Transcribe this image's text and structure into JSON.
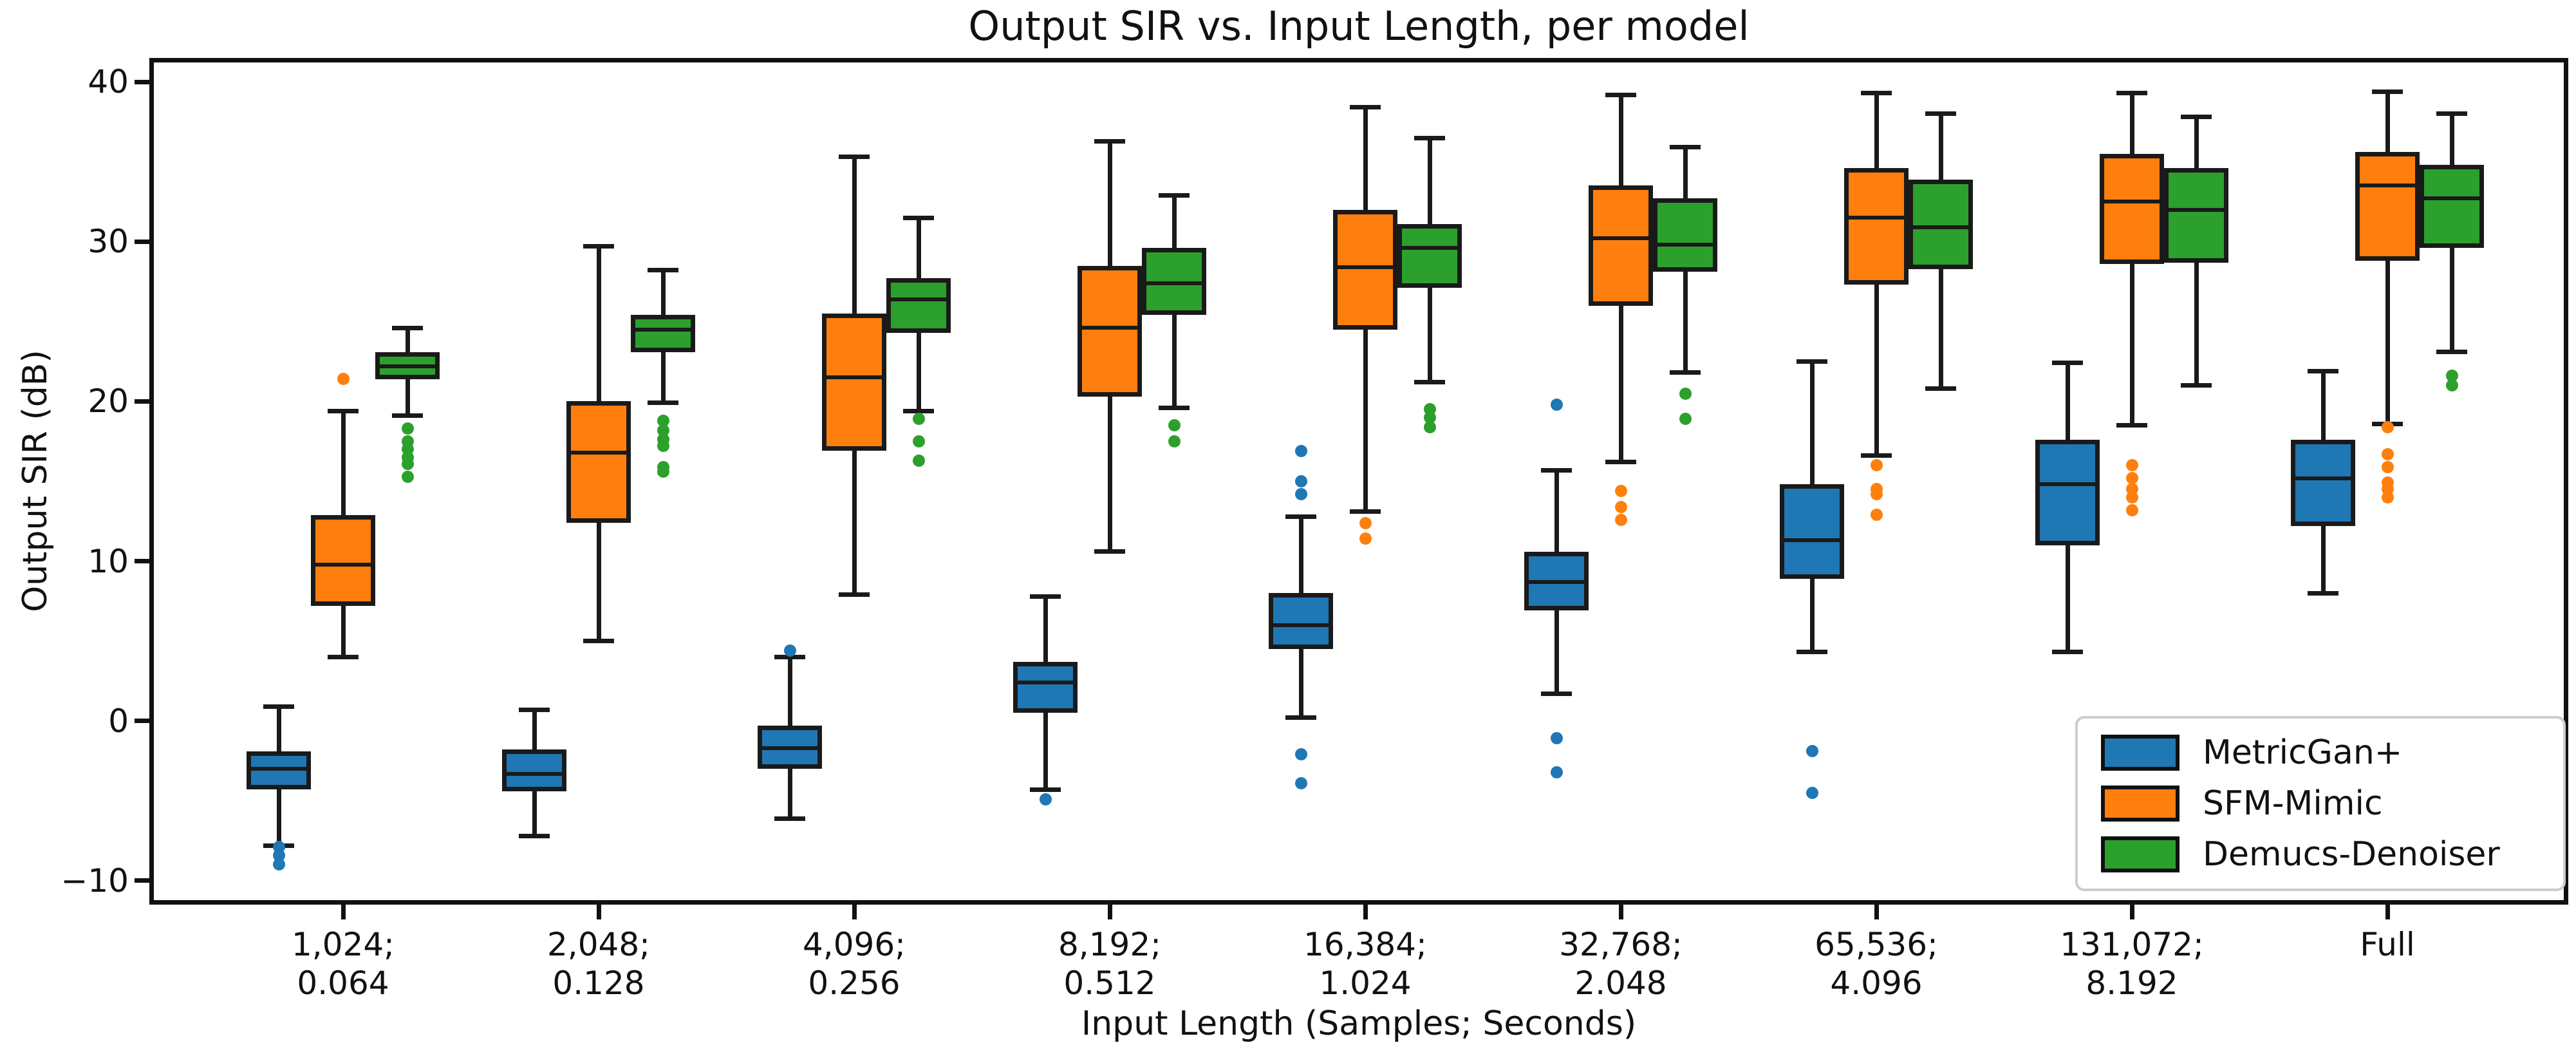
{
  "chart_data": {
    "type": "grouped_boxplot",
    "title": "Output SIR vs. Input Length, per model",
    "xlabel": "Input Length (Samples; Seconds)",
    "ylabel": "Output SIR (dB)",
    "ylim": [
      -11.5,
      41.5
    ],
    "yticks": [
      {
        "value": 40,
        "label": "40"
      },
      {
        "value": 30,
        "label": "30"
      },
      {
        "value": 20,
        "label": "20"
      },
      {
        "value": 10,
        "label": "10"
      },
      {
        "value": 0,
        "label": "0"
      },
      {
        "value": -10,
        "label": "−10"
      }
    ],
    "categories": [
      "1,024;\n0.064",
      "2,048;\n0.128",
      "4,096;\n0.256",
      "8,192;\n0.512",
      "16,384;\n1.024",
      "32,768;\n2.048",
      "65,536;\n4.096",
      "131,072;\n8.192",
      "Full"
    ],
    "grid": false,
    "legend_position": "lower right",
    "series": [
      {
        "name": "MetricGan+",
        "color": "#1f77b4",
        "boxes": [
          {
            "whislo": -7.8,
            "q1": -4.3,
            "med": -3.0,
            "q3": -1.9,
            "whishi": 0.9,
            "outliers": [
              -7.9,
              -8.4,
              -9.0
            ]
          },
          {
            "whislo": -7.2,
            "q1": -4.4,
            "med": -3.3,
            "q3": -1.8,
            "whishi": 0.7,
            "outliers": []
          },
          {
            "whislo": -6.1,
            "q1": -3.0,
            "med": -1.7,
            "q3": -0.3,
            "whishi": 4.0,
            "outliers": [
              4.4
            ]
          },
          {
            "whislo": -4.3,
            "q1": 0.5,
            "med": 2.4,
            "q3": 3.7,
            "whishi": 7.8,
            "outliers": [
              -4.9
            ]
          },
          {
            "whislo": 0.2,
            "q1": 4.5,
            "med": 6.0,
            "q3": 8.0,
            "whishi": 12.8,
            "outliers": [
              16.9,
              15.0,
              14.2,
              -2.1,
              -3.9
            ]
          },
          {
            "whislo": 1.7,
            "q1": 6.9,
            "med": 8.7,
            "q3": 10.6,
            "whishi": 15.7,
            "outliers": [
              19.8,
              -1.1,
              -3.2
            ]
          },
          {
            "whislo": 4.3,
            "q1": 8.9,
            "med": 11.3,
            "q3": 14.8,
            "whishi": 22.5,
            "outliers": [
              -1.9,
              -4.5
            ]
          },
          {
            "whislo": 4.3,
            "q1": 11.0,
            "med": 14.8,
            "q3": 17.6,
            "whishi": 22.4,
            "outliers": []
          },
          {
            "whislo": 8.0,
            "q1": 12.2,
            "med": 15.2,
            "q3": 17.6,
            "whishi": 21.9,
            "outliers": []
          }
        ]
      },
      {
        "name": "SFM-Mimic",
        "color": "#ff7f0e",
        "boxes": [
          {
            "whislo": 4.0,
            "q1": 7.2,
            "med": 9.8,
            "q3": 12.9,
            "whishi": 19.4,
            "outliers": [
              21.4
            ]
          },
          {
            "whislo": 5.0,
            "q1": 12.4,
            "med": 16.8,
            "q3": 20.0,
            "whishi": 29.7,
            "outliers": []
          },
          {
            "whislo": 7.9,
            "q1": 16.9,
            "med": 21.5,
            "q3": 25.5,
            "whishi": 35.3,
            "outliers": []
          },
          {
            "whislo": 10.6,
            "q1": 20.3,
            "med": 24.6,
            "q3": 28.5,
            "whishi": 36.3,
            "outliers": []
          },
          {
            "whislo": 13.1,
            "q1": 24.5,
            "med": 28.4,
            "q3": 32.0,
            "whishi": 38.4,
            "outliers": [
              12.4,
              11.4
            ]
          },
          {
            "whislo": 16.2,
            "q1": 26.0,
            "med": 30.2,
            "q3": 33.5,
            "whishi": 39.2,
            "outliers": [
              14.4,
              13.4,
              12.6
            ]
          },
          {
            "whislo": 16.6,
            "q1": 27.3,
            "med": 31.5,
            "q3": 34.6,
            "whishi": 39.3,
            "outliers": [
              16.0,
              14.5,
              14.2,
              12.9
            ]
          },
          {
            "whislo": 18.5,
            "q1": 28.6,
            "med": 32.5,
            "q3": 35.5,
            "whishi": 39.3,
            "outliers": [
              16.0,
              15.2,
              14.5,
              14.0,
              13.2
            ]
          },
          {
            "whislo": 18.6,
            "q1": 28.8,
            "med": 33.5,
            "q3": 35.6,
            "whishi": 39.4,
            "outliers": [
              18.4,
              16.7,
              15.9,
              14.9,
              14.5,
              14.0
            ]
          }
        ]
      },
      {
        "name": "Demucs-Denoiser",
        "color": "#2ca02c",
        "boxes": [
          {
            "whislo": 19.1,
            "q1": 21.4,
            "med": 22.2,
            "q3": 23.1,
            "whishi": 24.6,
            "outliers": [
              18.3,
              17.5,
              17.0,
              16.5,
              16.1,
              15.3
            ]
          },
          {
            "whislo": 19.9,
            "q1": 23.1,
            "med": 24.5,
            "q3": 25.4,
            "whishi": 28.2,
            "outliers": [
              18.8,
              18.2,
              17.6,
              17.2,
              15.9,
              15.6
            ]
          },
          {
            "whislo": 19.4,
            "q1": 24.3,
            "med": 26.4,
            "q3": 27.7,
            "whishi": 31.5,
            "outliers": [
              18.9,
              17.5,
              16.3
            ]
          },
          {
            "whislo": 19.6,
            "q1": 25.4,
            "med": 27.4,
            "q3": 29.6,
            "whishi": 32.9,
            "outliers": [
              18.5,
              17.5
            ]
          },
          {
            "whislo": 21.2,
            "q1": 27.1,
            "med": 29.6,
            "q3": 31.1,
            "whishi": 36.5,
            "outliers": [
              19.5,
              19.0,
              18.4
            ]
          },
          {
            "whislo": 21.8,
            "q1": 28.1,
            "med": 29.8,
            "q3": 32.7,
            "whishi": 35.9,
            "outliers": [
              20.5,
              18.9
            ]
          },
          {
            "whislo": 20.8,
            "q1": 28.3,
            "med": 30.9,
            "q3": 33.9,
            "whishi": 38.0,
            "outliers": []
          },
          {
            "whislo": 21.0,
            "q1": 28.7,
            "med": 32.0,
            "q3": 34.6,
            "whishi": 37.8,
            "outliers": []
          },
          {
            "whislo": 23.1,
            "q1": 29.6,
            "med": 32.7,
            "q3": 34.8,
            "whishi": 38.0,
            "outliers": [
              21.6,
              21.0
            ]
          }
        ]
      }
    ]
  }
}
